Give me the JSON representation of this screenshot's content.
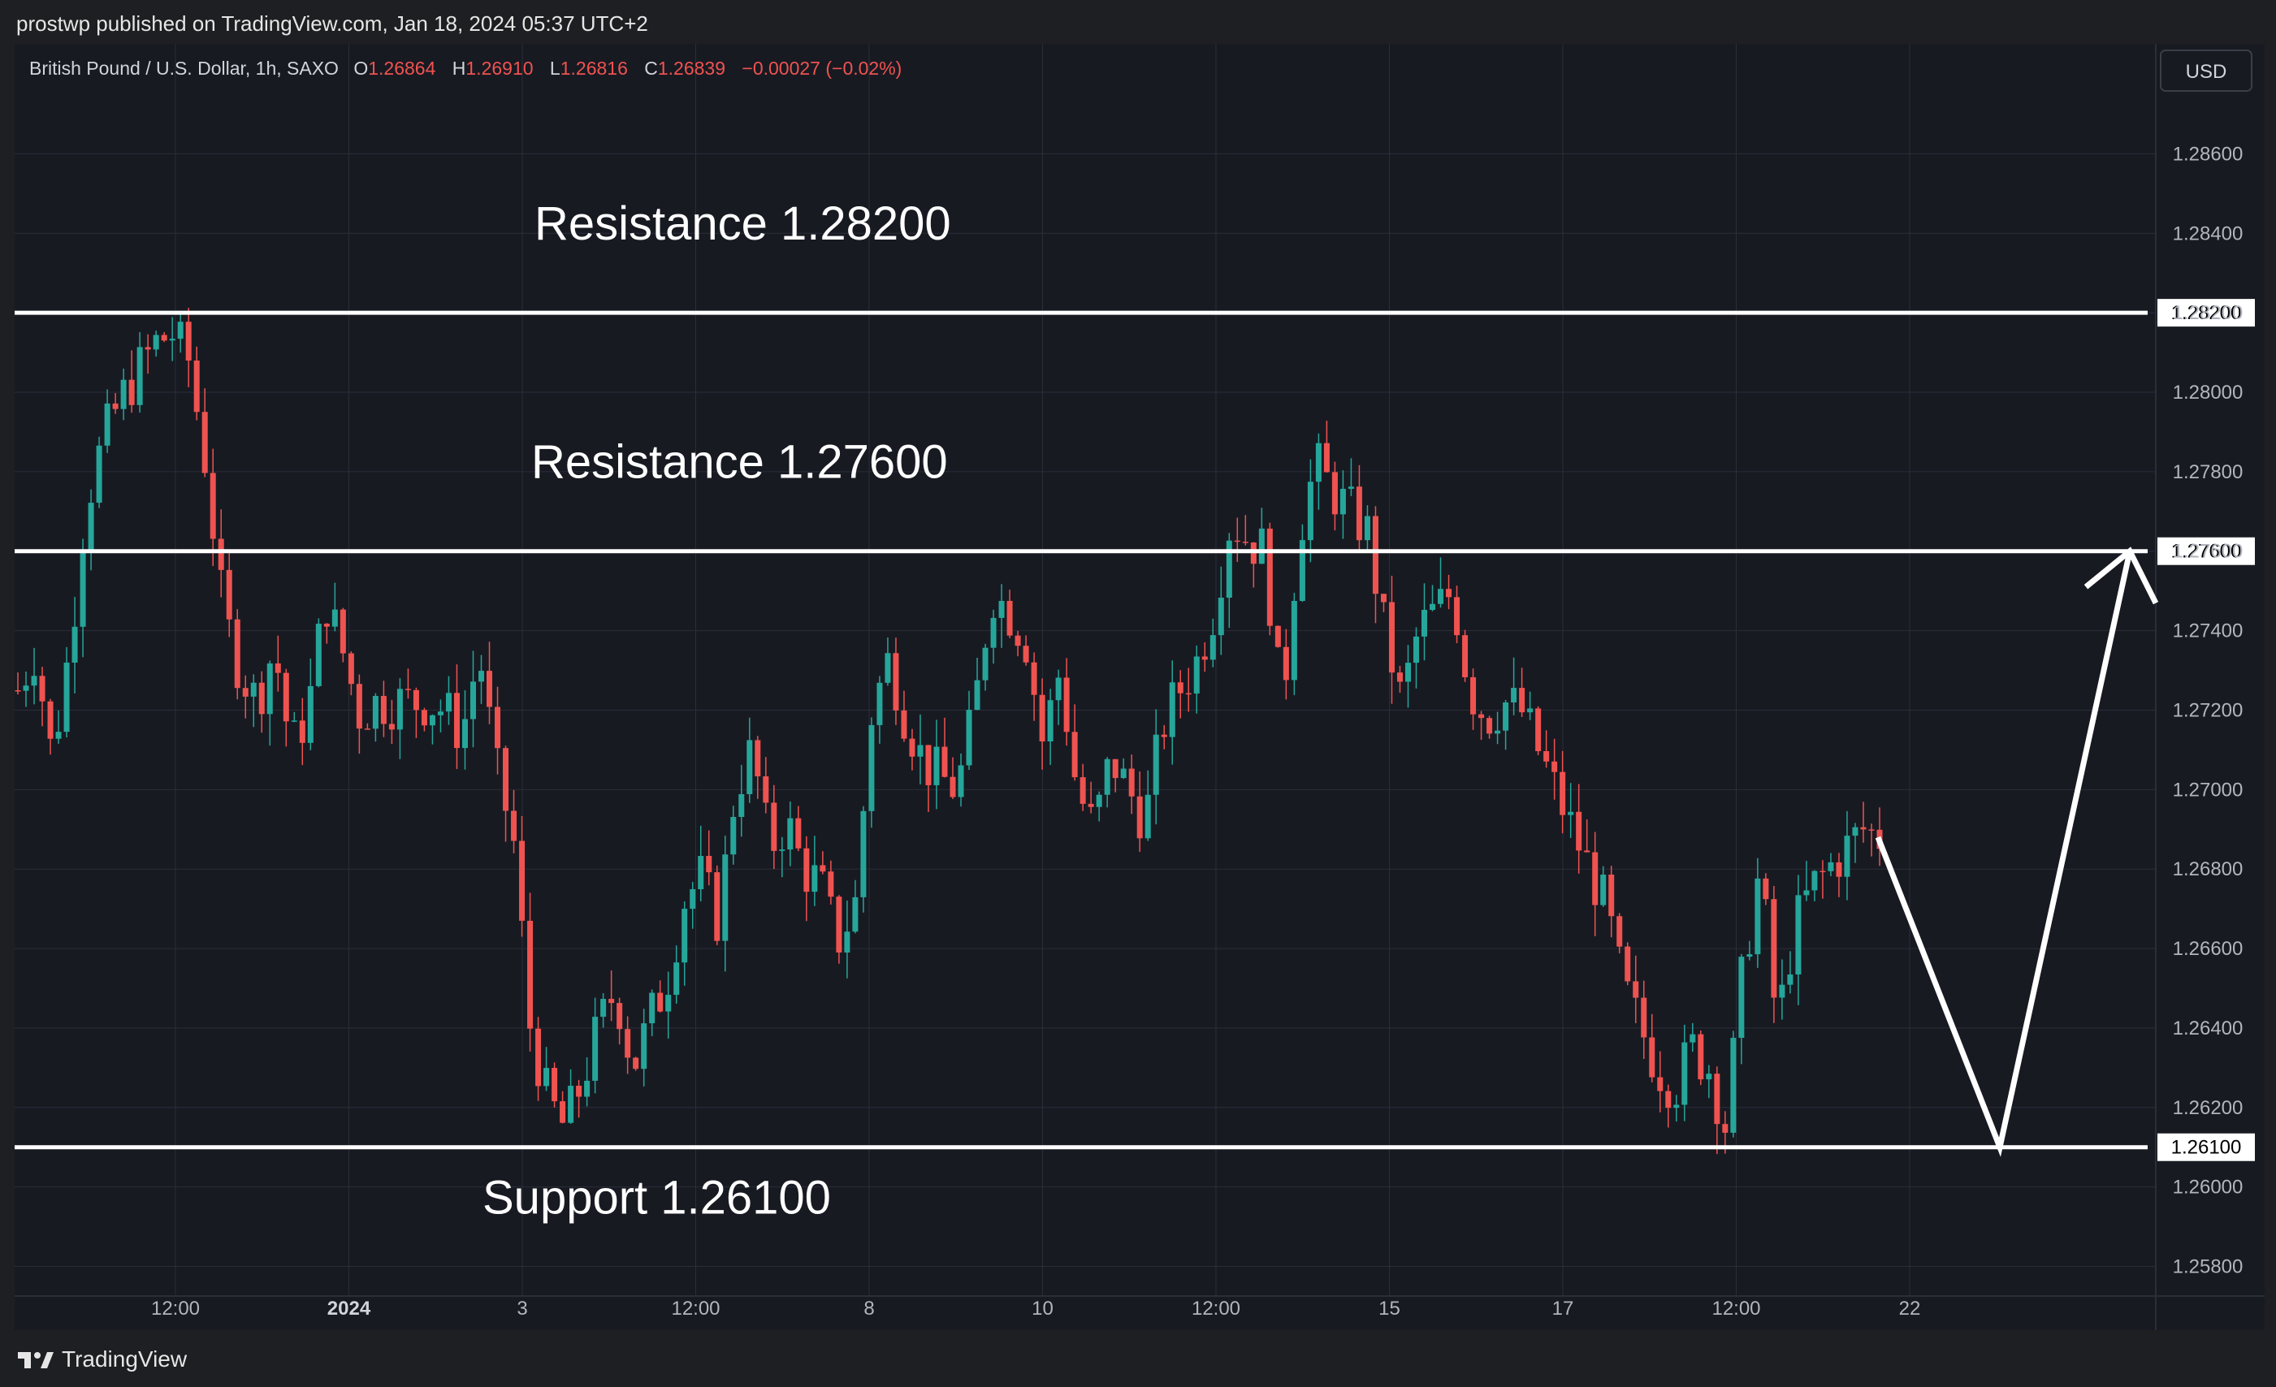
{
  "header": {
    "published_by": "prostwp published on TradingView.com, Jan 18, 2024 05:37 UTC+2"
  },
  "instrument": {
    "title": "British Pound / U.S. Dollar, 1h, SAXO",
    "o_label": "O",
    "o_value": "1.26864",
    "h_label": "H",
    "h_value": "1.26910",
    "l_label": "L",
    "l_value": "1.26816",
    "c_label": "C",
    "c_value": "1.26839",
    "change": "−0.00027 (−0.02%)"
  },
  "currency_button": "USD",
  "footer": {
    "brand": "TradingView"
  },
  "colors": {
    "up": "#26a69a",
    "down": "#ef5350",
    "line": "#ffffff",
    "grid": "#2a2e39",
    "background": "#181a22"
  },
  "chart_data": {
    "type": "candlestick",
    "ylim": [
      1.2575,
      1.2875
    ],
    "y_ticks": [
      "1.25800",
      "1.26000",
      "1.26200",
      "1.26400",
      "1.26600",
      "1.26800",
      "1.27000",
      "1.27200",
      "1.27400",
      "1.27600",
      "1.27800",
      "1.28000",
      "1.28200",
      "1.28400",
      "1.28600"
    ],
    "x_ticks": [
      {
        "label": "12:00",
        "bold": false
      },
      {
        "label": "2024",
        "bold": true
      },
      {
        "label": "3",
        "bold": false
      },
      {
        "label": "12:00",
        "bold": false
      },
      {
        "label": "8",
        "bold": false
      },
      {
        "label": "10",
        "bold": false
      },
      {
        "label": "12:00",
        "bold": false
      },
      {
        "label": "15",
        "bold": false
      },
      {
        "label": "17",
        "bold": false
      },
      {
        "label": "12:00",
        "bold": false
      },
      {
        "label": "22",
        "bold": false
      }
    ],
    "levels": [
      {
        "price": 1.282,
        "label": "1.28200",
        "annotation": "Resistance 1.28200"
      },
      {
        "price": 1.276,
        "label": "1.27600",
        "annotation": "Resistance 1.27600"
      },
      {
        "price": 1.261,
        "label": "1.26100",
        "annotation": "Support 1.26100"
      }
    ],
    "path_points": [
      1.2688,
      1.261,
      1.276
    ],
    "close_path": [
      1.2725,
      1.2735,
      1.2708,
      1.2735,
      1.2772,
      1.2788,
      1.2798,
      1.2805,
      1.2812,
      1.2815,
      1.2808,
      1.2782,
      1.2745,
      1.273,
      1.2722,
      1.2736,
      1.271,
      1.272,
      1.2748,
      1.2735,
      1.2719,
      1.2722,
      1.2722,
      1.2722,
      1.2722,
      1.272,
      1.2714,
      1.2735,
      1.2705,
      1.2688,
      1.264,
      1.2622,
      1.2615,
      1.2626,
      1.264,
      1.265,
      1.263,
      1.2642,
      1.2652,
      1.2672,
      1.2678,
      1.2667,
      1.27,
      1.271,
      1.2685,
      1.2692,
      1.268,
      1.2676,
      1.2662,
      1.267,
      1.272,
      1.2733,
      1.2718,
      1.2707,
      1.2703,
      1.27,
      1.272,
      1.275,
      1.2745,
      1.2738,
      1.2712,
      1.273,
      1.27,
      1.269,
      1.2708,
      1.27,
      1.2692,
      1.2716,
      1.2725,
      1.2732,
      1.2745,
      1.2768,
      1.2763,
      1.276,
      1.272,
      1.2765,
      1.2782,
      1.2775,
      1.277,
      1.2765,
      1.274,
      1.2722,
      1.274,
      1.2745,
      1.275,
      1.2725,
      1.2718,
      1.2722,
      1.272,
      1.271,
      1.27,
      1.269,
      1.268,
      1.267,
      1.265,
      1.264,
      1.263,
      1.2625,
      1.2635,
      1.263,
      1.2615,
      1.2655,
      1.268,
      1.264,
      1.2665,
      1.2675,
      1.268,
      1.2685,
      1.269,
      1.2688
    ],
    "candle_count": 230
  }
}
